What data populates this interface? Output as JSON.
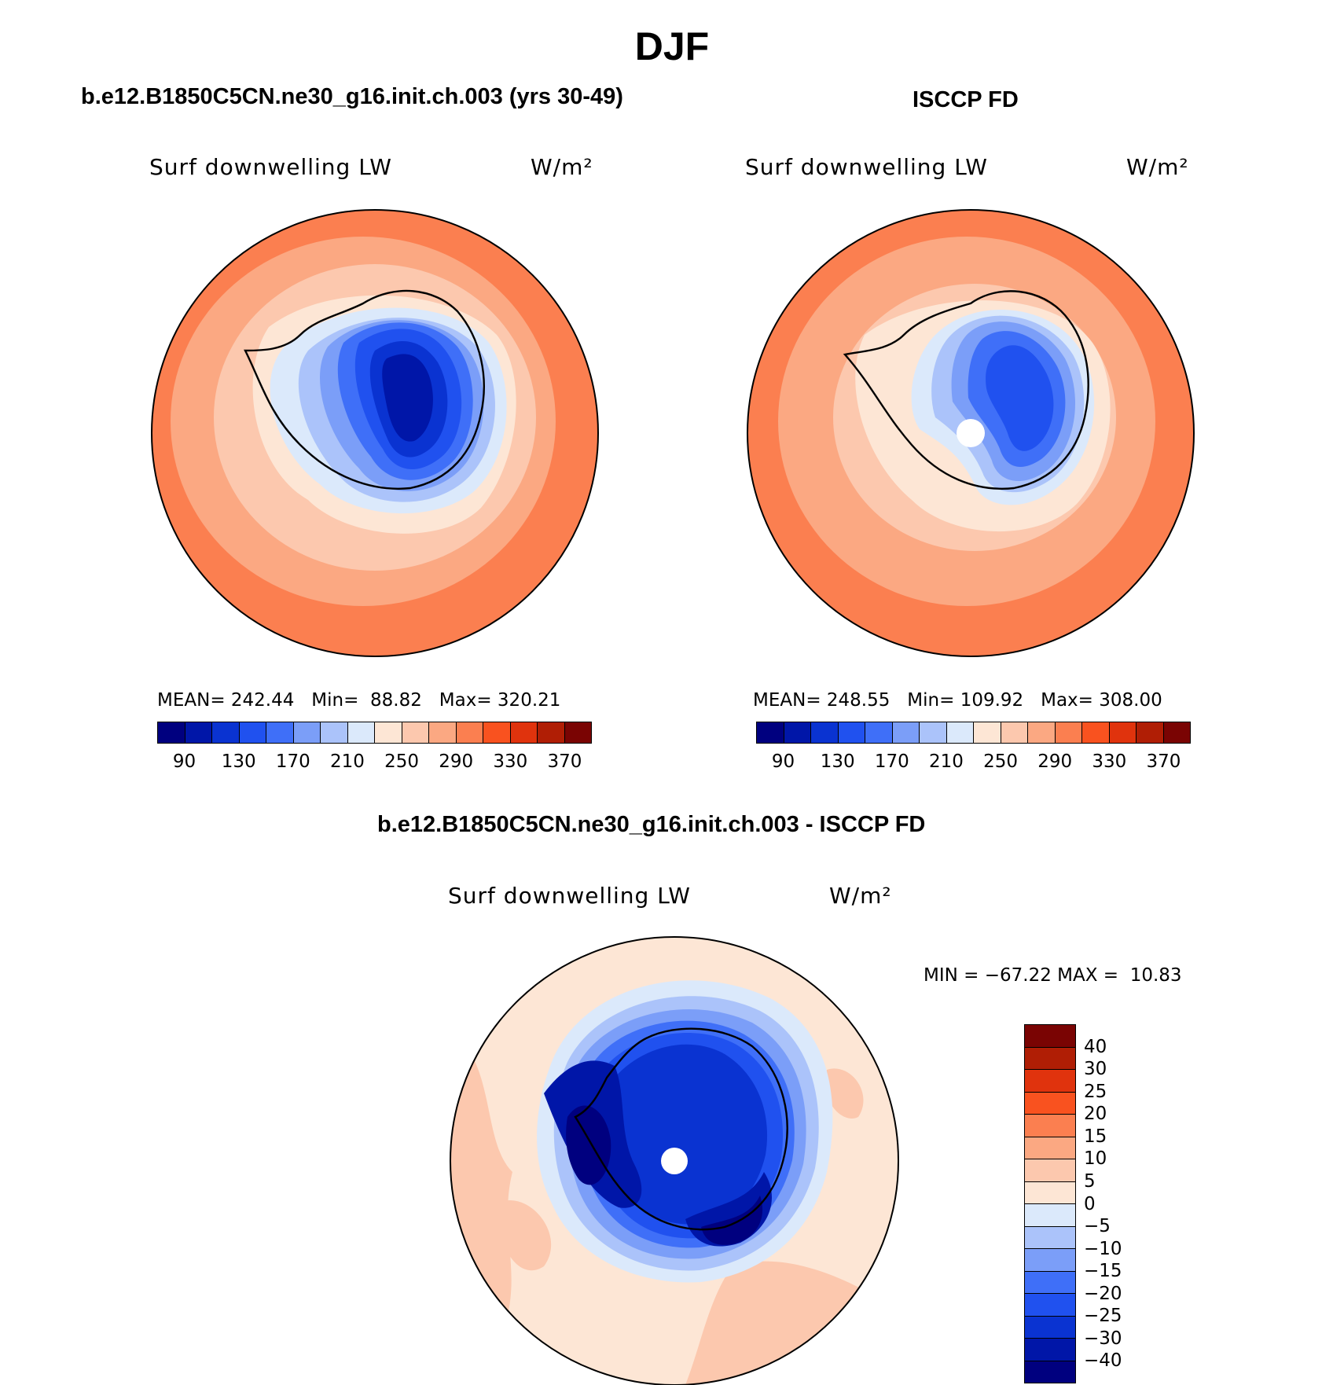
{
  "figure": {
    "title": "DJF",
    "colors": {
      "abs_scale": [
        "#00007f",
        "#0016a8",
        "#0a33d1",
        "#2051ef",
        "#3f6ff8",
        "#7b9ef8",
        "#abc3fa",
        "#dbe9fb",
        "#fde6d5",
        "#fcc8ae",
        "#fba882",
        "#fb7f50",
        "#f9521f",
        "#e0330d",
        "#b01e05",
        "#7a0403"
      ],
      "diff_scale": [
        "#7a0403",
        "#b01e05",
        "#e0330d",
        "#f9521f",
        "#fb7f50",
        "#fba882",
        "#fcc8ae",
        "#fde6d5",
        "#dbe9fb",
        "#abc3fa",
        "#7b9ef8",
        "#3f6ff8",
        "#2051ef",
        "#0a33d1",
        "#0016a8",
        "#00007f"
      ]
    }
  },
  "panels": {
    "model": {
      "title": "b.e12.B1850C5CN.ne30_g16.init.ch.003 (yrs 30-49)",
      "variable": "Surf downwelling LW",
      "units": "W/m²",
      "stats": "MEAN= 242.44   Min=  88.82   Max= 320.21"
    },
    "obs": {
      "title": "ISCCP FD",
      "variable": "Surf downwelling LW",
      "units": "W/m²",
      "stats": "MEAN= 248.55   Min= 109.92   Max= 308.00"
    },
    "diff": {
      "title": "b.e12.B1850C5CN.ne30_g16.init.ch.003 - ISCCP FD",
      "variable": "Surf downwelling LW",
      "units": "W/m²",
      "stats": "MIN = −67.22 MAX =  10.83"
    }
  },
  "chart_data": [
    {
      "type": "heatmap",
      "title": "b.e12.B1850C5CN.ne30_g16.init.ch.003 (yrs 30-49)",
      "variable": "Surf downwelling LW",
      "units": "W/m²",
      "projection": "south polar stereographic",
      "mean": 242.44,
      "min": 88.82,
      "max": 320.21,
      "colorbar_tick_labels": [
        "90",
        "130",
        "170",
        "210",
        "250",
        "290",
        "330",
        "370"
      ],
      "levels": [
        80,
        90,
        110,
        130,
        150,
        170,
        190,
        210,
        230,
        250,
        270,
        290,
        310,
        330,
        350,
        370
      ]
    },
    {
      "type": "heatmap",
      "title": "ISCCP FD",
      "variable": "Surf downwelling LW",
      "units": "W/m²",
      "projection": "south polar stereographic",
      "mean": 248.55,
      "min": 109.92,
      "max": 308.0,
      "colorbar_tick_labels": [
        "90",
        "130",
        "170",
        "210",
        "250",
        "290",
        "330",
        "370"
      ],
      "levels": [
        80,
        90,
        110,
        130,
        150,
        170,
        190,
        210,
        230,
        250,
        270,
        290,
        310,
        330,
        350,
        370
      ]
    },
    {
      "type": "heatmap",
      "title": "b.e12.B1850C5CN.ne30_g16.init.ch.003 - ISCCP FD",
      "variable": "Surf downwelling LW",
      "units": "W/m²",
      "projection": "south polar stereographic",
      "min": -67.22,
      "max": 10.83,
      "colorbar_tick_labels": [
        "40",
        "30",
        "25",
        "20",
        "15",
        "10",
        "5",
        "0",
        "−5",
        "−10",
        "−15",
        "−20",
        "−25",
        "−30",
        "−40"
      ]
    }
  ]
}
